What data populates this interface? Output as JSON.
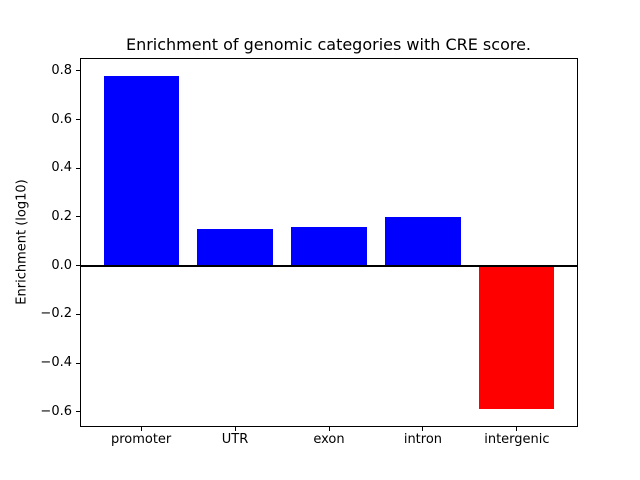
{
  "chart_data": {
    "type": "bar",
    "title": "Enrichment of genomic categories with CRE score.",
    "xlabel": "",
    "ylabel": "Enrichment (log10)",
    "categories": [
      "promoter",
      "UTR",
      "exon",
      "intron",
      "intergenic"
    ],
    "values": [
      0.78,
      0.15,
      0.16,
      0.2,
      -0.59
    ],
    "bar_colors": [
      "#0000ff",
      "#0000ff",
      "#0000ff",
      "#0000ff",
      "#ff0000"
    ],
    "positive_color": "#0000ff",
    "negative_color": "#ff0000",
    "bar_width": 0.8,
    "ylim": [
      -0.6585,
      0.8485
    ],
    "xlim": [
      -0.64,
      4.64
    ],
    "yticks": [
      0.8,
      0.6,
      0.4,
      0.2,
      0.0,
      -0.2,
      -0.4,
      -0.6
    ],
    "ytick_labels": [
      "0.8",
      "0.6",
      "0.4",
      "0.2",
      "0.0",
      "−0.2",
      "−0.4",
      "−0.6"
    ],
    "zero_line": true,
    "grid": false,
    "legend": null,
    "background": "#ffffff",
    "spine_color": "#000000"
  }
}
